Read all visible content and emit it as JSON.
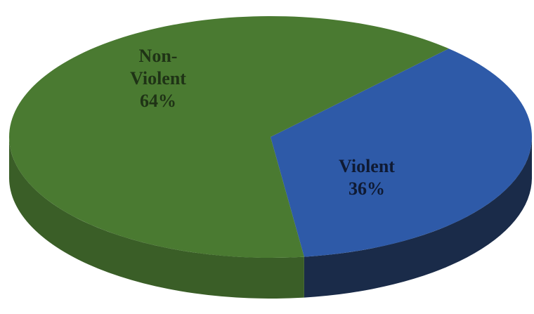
{
  "chart_data": {
    "type": "pie",
    "style": "3d",
    "title": "",
    "slices": [
      {
        "label_lines": [
          "Non-",
          "Violent",
          "64%"
        ],
        "category": "Non-Violent",
        "value": 64,
        "unit": "%",
        "color": "#4a7a31",
        "side_color": "#3a5e27",
        "label_color": "#1f3316"
      },
      {
        "label_lines": [
          "Violent",
          "36%"
        ],
        "category": "Violent",
        "value": 36,
        "unit": "%",
        "color": "#2e5aa8",
        "side_color": "#1a2b49",
        "label_color": "#0f1a33"
      }
    ],
    "legend": "none"
  }
}
